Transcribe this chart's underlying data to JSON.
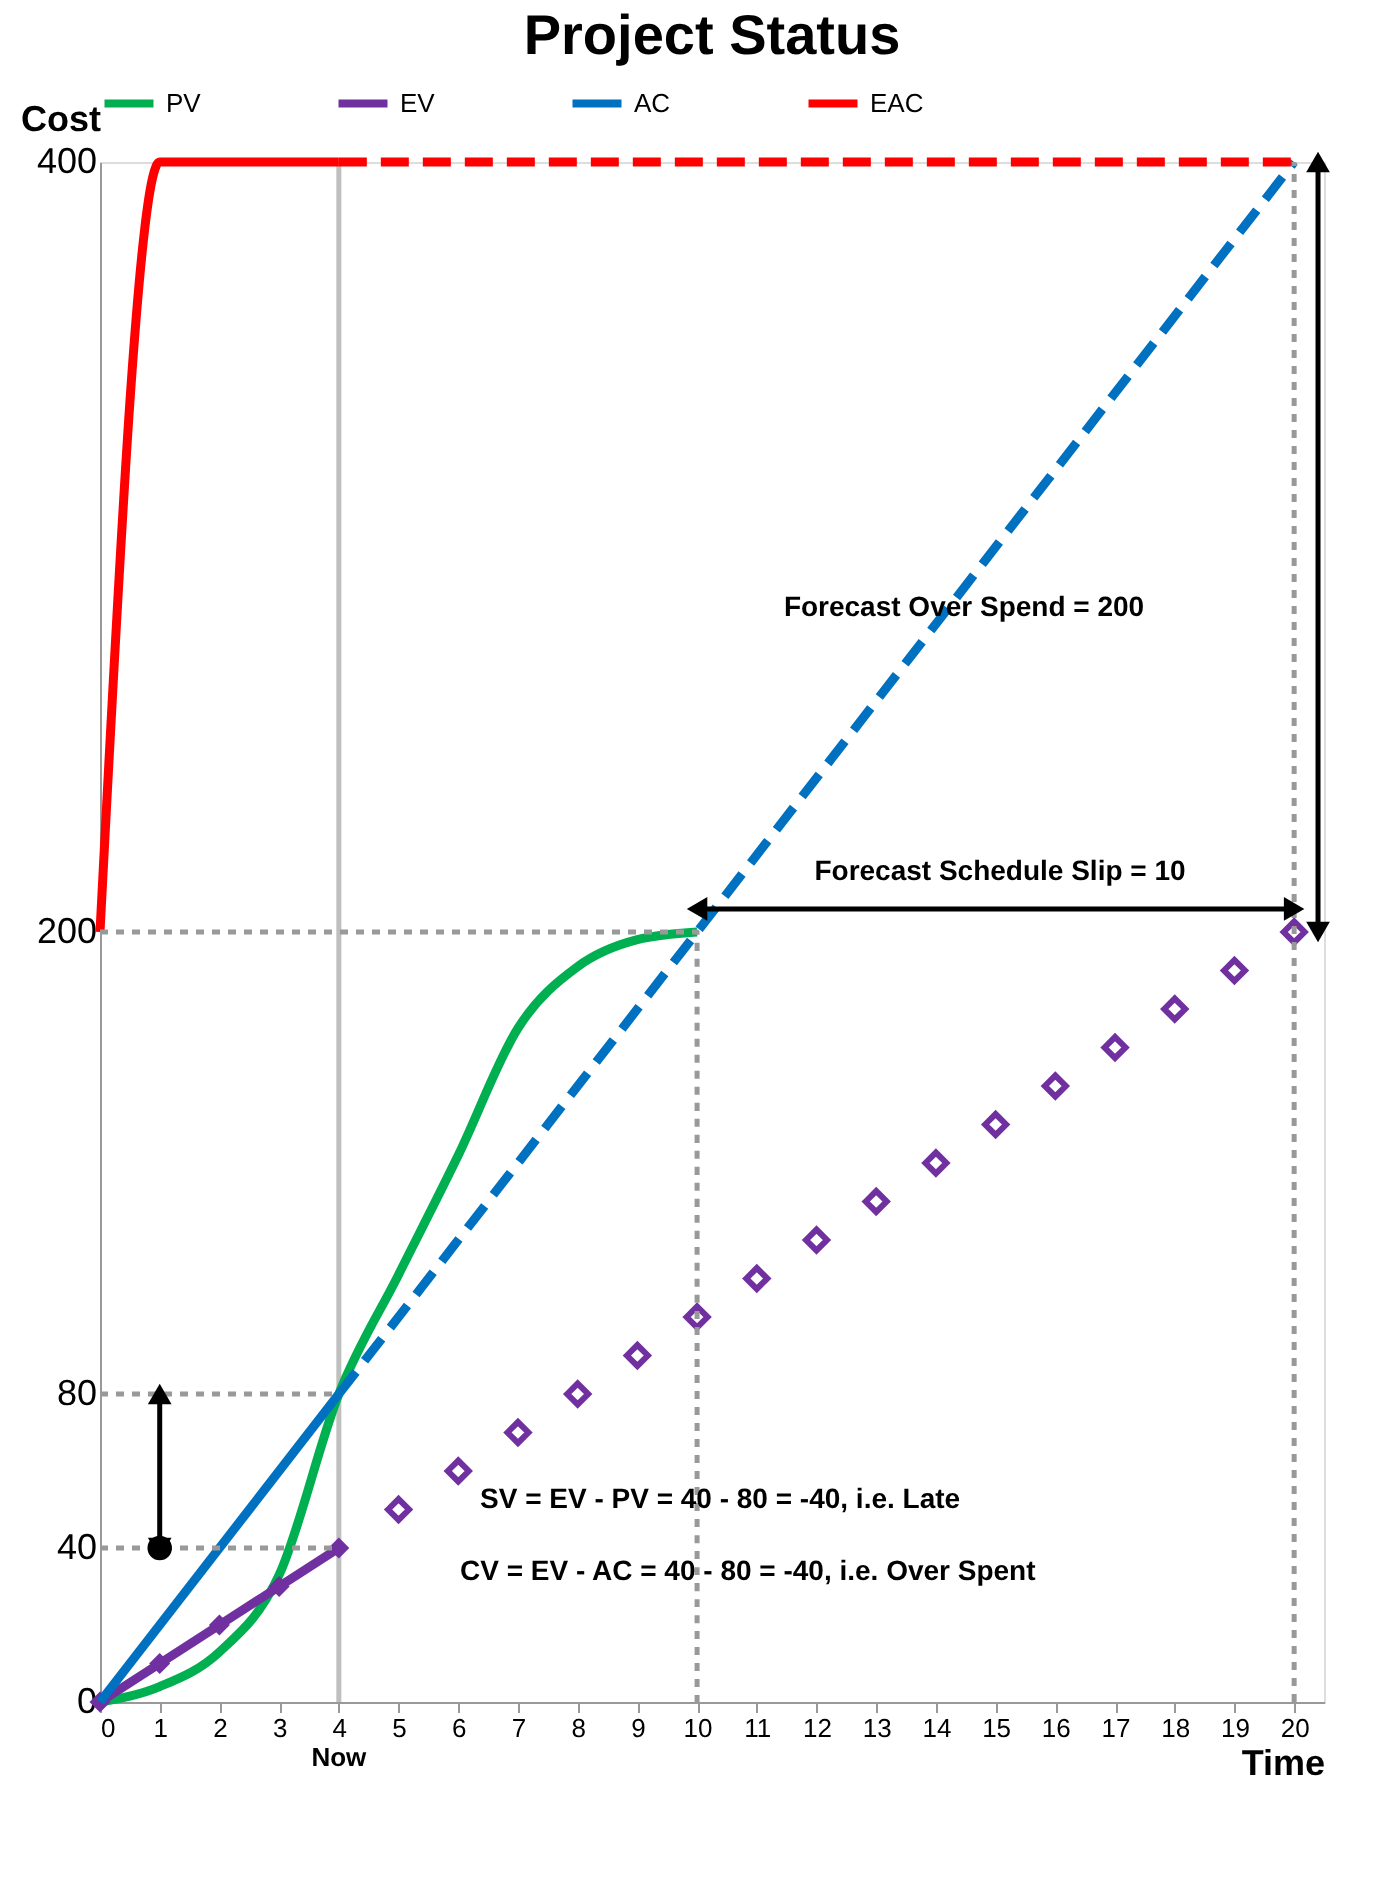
{
  "chart_data": {
    "type": "line",
    "title": "Project Status",
    "xlabel": "Time",
    "ylabel": "Cost",
    "xlim": [
      0,
      20.5
    ],
    "xticks": [
      0,
      1,
      2,
      3,
      4,
      5,
      6,
      7,
      8,
      9,
      10,
      11,
      12,
      13,
      14,
      15,
      16,
      17,
      18,
      19,
      20
    ],
    "ylim": [
      0,
      400
    ],
    "yticks": [
      0,
      40,
      80,
      200,
      400
    ],
    "grid": false,
    "legend": "top",
    "ref_lines": [
      {
        "axis": "x",
        "value": 4,
        "label": "Now",
        "color": "#bfbfbf"
      }
    ],
    "series": [
      {
        "name": "PV",
        "color": "#00b050",
        "x": [
          0,
          1,
          2,
          3,
          4,
          5,
          6,
          7,
          8,
          9,
          10
        ],
        "values": [
          0,
          4,
          13,
          33,
          80,
          111,
          142,
          175,
          191,
          198,
          200
        ]
      },
      {
        "name": "EV",
        "color": "#7030a0",
        "marker": "diamond",
        "x": [
          0,
          1,
          2,
          3,
          4
        ],
        "values": [
          0,
          10,
          20,
          30,
          40
        ]
      },
      {
        "name": "AC",
        "color": "#0070c0",
        "x": [
          0,
          4
        ],
        "values": [
          0,
          80
        ]
      },
      {
        "name": "EAC",
        "color": "#ff0000",
        "x": [
          0,
          1,
          4
        ],
        "values": [
          200,
          400,
          400
        ]
      },
      {
        "type": "scatter",
        "color": "#7030a0",
        "marker": "diamond",
        "x": [
          5,
          6,
          7,
          8,
          9,
          10,
          11,
          12,
          13,
          14,
          15,
          16,
          17,
          18,
          19,
          20
        ],
        "values": [
          50,
          60,
          70,
          80,
          90,
          100,
          110,
          120,
          130,
          140,
          150,
          160,
          170,
          180,
          190,
          200
        ]
      },
      {
        "color": "#0070c0",
        "line_style": "dashed",
        "x": [
          4,
          20
        ],
        "values": [
          80,
          400
        ]
      },
      {
        "color": "#ff0000",
        "line_style": "dashed",
        "x": [
          4,
          20
        ],
        "values": [
          400,
          400
        ]
      },
      {
        "color": "#999999",
        "line_style": "dotted",
        "x": [
          0,
          10,
          10
        ],
        "values": [
          200,
          200,
          0
        ]
      },
      {
        "color": "#999999",
        "line_style": "dotted",
        "x": [
          0,
          4
        ],
        "values": [
          80,
          80
        ]
      },
      {
        "color": "#999999",
        "line_style": "dotted",
        "x": [
          0,
          4
        ],
        "values": [
          40,
          40
        ]
      },
      {
        "color": "#999999",
        "line_style": "dotted",
        "x": [
          20,
          20
        ],
        "values": [
          0,
          400
        ]
      },
      {
        "color": "#000000",
        "marker": "triangle",
        "x": [
          1,
          1
        ],
        "values": [
          40,
          80
        ]
      },
      {
        "type": "scatter",
        "color": "#000000",
        "marker": "circle",
        "x": [
          1
        ],
        "values": [
          40
        ]
      },
      {
        "color": "#000000",
        "marker": "triangle",
        "x": [
          10,
          20
        ],
        "values": [
          206,
          206
        ]
      },
      {
        "color": "#000000",
        "marker": "triangle",
        "x": [
          20.4,
          20.4
        ],
        "values": [
          200,
          400
        ]
      }
    ],
    "annotations": [
      "Forecast Over Spend = 200",
      "Forecast Schedule Slip = 10",
      "SV = EV - PV = 40 - 80 = -40, i.e. Late",
      "CV = EV - AC = 40 - 80 = -40, i.e. Over Spent"
    ]
  }
}
